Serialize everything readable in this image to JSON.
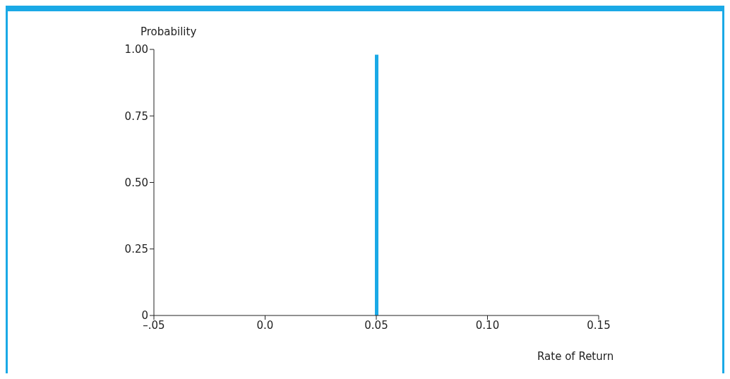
{
  "chart_data": {
    "type": "bar",
    "xlabel": "Rate of Return",
    "ylabel": "Probability",
    "x": [
      0.05
    ],
    "values": [
      0.98
    ],
    "color": "#1aa9e6",
    "xlim": [
      -0.05,
      0.15
    ],
    "xticks": [
      {
        "value": -0.05,
        "label": "–.05"
      },
      {
        "value": 0,
        "label": "0.0"
      },
      0.05,
      {
        "value": 0.1,
        "label": "0.10"
      },
      0.15
    ],
    "ylim": [
      0,
      1
    ],
    "yticks": [
      0,
      0.25,
      {
        "value": 0.5,
        "label": "0.50"
      },
      0.75,
      {
        "value": 1,
        "label": "1.00"
      }
    ],
    "grid": false,
    "legend": false
  }
}
